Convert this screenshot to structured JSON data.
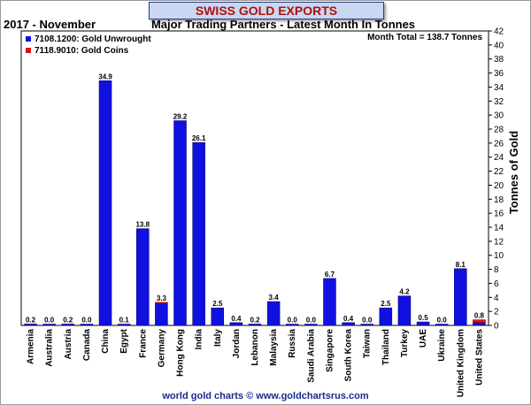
{
  "title": "SWISS GOLD EXPORTS",
  "header_left": "2017 - November",
  "header_center": "Major Trading Partners - Latest Month In Tonnes",
  "footer": "world gold charts © www.goldchartsrus.com",
  "chart_data": {
    "type": "bar",
    "ylabel": "Tonnes of Gold",
    "ylim": [
      0,
      42
    ],
    "ytick_step": 2,
    "grid": false,
    "legend_position": "top-left",
    "annotation": "Month Total = 138.7 Tonnes",
    "colors": {
      "unwrought": "#1010e0",
      "coins": "#e01010"
    },
    "categories": [
      "Armenia",
      "Australia",
      "Austria",
      "Canada",
      "China",
      "Egypt",
      "France",
      "Germany",
      "Hong Kong",
      "India",
      "Italy",
      "Jordan",
      "Lebanon",
      "Malaysia",
      "Russia",
      "Saudi Arabia",
      "Singapore",
      "South Korea",
      "Taiwan",
      "Thailand",
      "Turkey",
      "UAE",
      "Ukraine",
      "United Kingdom",
      "United States"
    ],
    "totals_labels": [
      "0.2",
      "0.0",
      "0.2",
      "0.0",
      "34.9",
      "0.1",
      "13.8",
      "3.3",
      "29.2",
      "26.1",
      "2.5",
      "0.4",
      "0.2",
      "3.4",
      "0.0",
      "0.0",
      "6.7",
      "0.4",
      "0.0",
      "2.5",
      "4.2",
      "0.5",
      "0.0",
      "8.1",
      "0.8"
    ],
    "series": [
      {
        "name": "7108.1200: Gold Unwrought",
        "values": [
          0.2,
          0.0,
          0.2,
          0.0,
          34.9,
          0.1,
          13.8,
          3.1,
          29.2,
          26.1,
          2.5,
          0.4,
          0.2,
          3.4,
          0.0,
          0.0,
          6.7,
          0.4,
          0.0,
          2.5,
          4.2,
          0.5,
          0.0,
          8.1,
          0.4
        ]
      },
      {
        "name": "7118.9010: Gold Coins",
        "values": [
          0.0,
          0.0,
          0.0,
          0.0,
          0.0,
          0.0,
          0.0,
          0.2,
          0.0,
          0.0,
          0.0,
          0.0,
          0.0,
          0.0,
          0.0,
          0.0,
          0.0,
          0.0,
          0.0,
          0.0,
          0.0,
          0.0,
          0.0,
          0.0,
          0.4
        ]
      }
    ]
  }
}
